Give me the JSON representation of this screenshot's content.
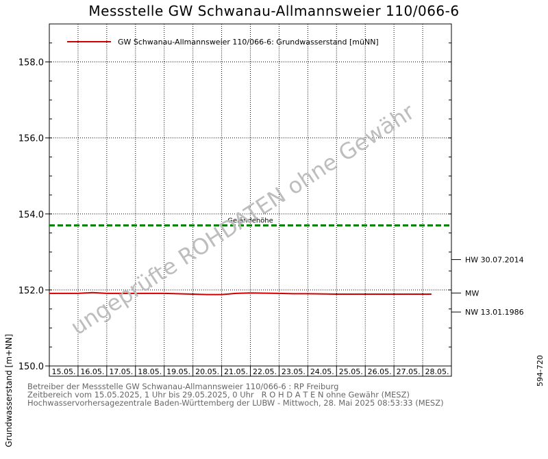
{
  "chart_data": {
    "type": "line",
    "title": "Messstelle GW Schwanau-Allmannsweier 110/066-6",
    "ylabel": "Grundwasserstand [m+NN]",
    "xlabel": "",
    "ylim": [
      150.0,
      159.0
    ],
    "yticks": [
      "150.0",
      "152.0",
      "154.0",
      "156.0",
      "158.0"
    ],
    "categories": [
      "15.05.",
      "16.05.",
      "17.05.",
      "18.05.",
      "19.05.",
      "20.05.",
      "21.05.",
      "22.05.",
      "23.05.",
      "24.05.",
      "25.05.",
      "26.05.",
      "27.05.",
      "28.05."
    ],
    "grid": true,
    "legend_position": "top-left",
    "series": [
      {
        "name": "GW Schwanau-Allmannsweier 110/066-6: Grundwasserstand [müNN]",
        "color": "#cc0000",
        "x": [
          0,
          1,
          1.5,
          2,
          3,
          4,
          5,
          5.5,
          6,
          6.5,
          7,
          8,
          8.5,
          9,
          10,
          11,
          12,
          13.3
        ],
        "values": [
          151.91,
          151.91,
          151.93,
          151.91,
          151.91,
          151.91,
          151.89,
          151.88,
          151.88,
          151.91,
          151.92,
          151.91,
          151.9,
          151.9,
          151.89,
          151.89,
          151.89,
          151.89
        ]
      }
    ],
    "reference_lines": [
      {
        "label": "Geländehöhe",
        "value": 153.7,
        "color": "#008000",
        "style": "dashed"
      }
    ],
    "side_markers": [
      {
        "label": "HW 30.07.2014",
        "value": 152.8
      },
      {
        "label": "MW",
        "value": 151.92
      },
      {
        "label": "NW 13.01.1986",
        "value": 151.42
      }
    ],
    "watermark": "ungeprüfte ROHDATEN ohne Gewähr",
    "watermark_color": "#bdbdbd"
  },
  "footer": {
    "line1": "Betreiber der Messstelle GW Schwanau-Allmannsweier 110/066-6 : RP Freiburg",
    "line2": "Zeitbereich vom 15.05.2025, 1 Uhr bis 29.05.2025, 0 Uhr   R O H D A T E N ohne Gewähr (MESZ)",
    "line3": "Hochwasservorhersagezentrale Baden-Württemberg der LUBW - Mittwoch, 28. Mai 2025 08:53:33 (MESZ)"
  },
  "side_code": "594-720"
}
